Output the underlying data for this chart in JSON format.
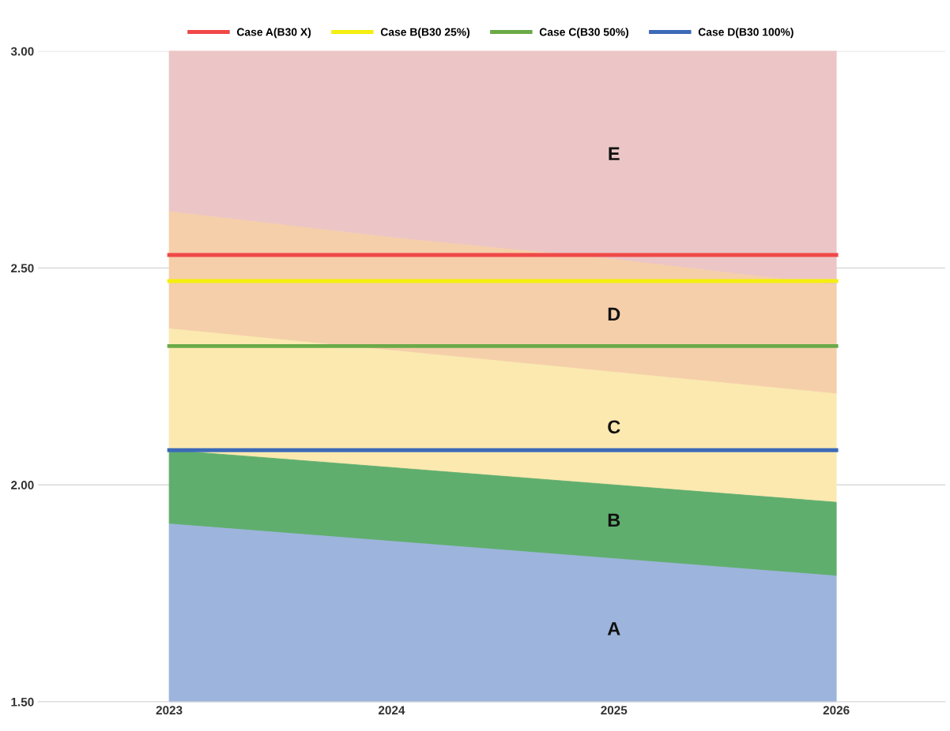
{
  "chart_data": {
    "type": "area",
    "categories": [
      "2023",
      "2024",
      "2025",
      "2026"
    ],
    "series": [
      {
        "name": "A",
        "color": "#9db4dc",
        "values": [
          1.91,
          1.87,
          1.83,
          1.79
        ]
      },
      {
        "name": "B",
        "color": "#5fae6e",
        "values": [
          2.08,
          2.04,
          2.0,
          1.96
        ]
      },
      {
        "name": "C",
        "color": "#fbe9b0",
        "values": [
          2.36,
          2.31,
          2.26,
          2.21
        ]
      },
      {
        "name": "D",
        "color": "#f5cfaa",
        "values": [
          2.63,
          2.57,
          2.52,
          2.46
        ]
      },
      {
        "name": "E",
        "color": "#ecc6c6",
        "values": [
          3.0,
          3.0,
          3.0,
          3.0
        ]
      },
      {
        "name": "Case A(B30 X)",
        "type": "line",
        "color": "#f04848",
        "values": [
          2.53,
          2.53,
          2.53,
          2.53
        ]
      },
      {
        "name": "Case B(B30 25%)",
        "type": "line",
        "color": "#f5ee10",
        "values": [
          2.47,
          2.47,
          2.47,
          2.47
        ]
      },
      {
        "name": "Case C(B30 50%)",
        "type": "line",
        "color": "#6aaa48",
        "values": [
          2.32,
          2.32,
          2.32,
          2.32
        ]
      },
      {
        "name": "Case D(B30 100%)",
        "type": "line",
        "color": "#3d6ab8",
        "values": [
          2.08,
          2.08,
          2.08,
          2.08
        ]
      }
    ],
    "ylim": [
      1.5,
      3.0
    ],
    "yticks": [
      {
        "value": 1.5,
        "label": "1.50"
      },
      {
        "value": 2.0,
        "label": "2.00"
      },
      {
        "value": 2.5,
        "label": "2.50"
      },
      {
        "value": 3.0,
        "label": "3.00"
      }
    ],
    "grid": "y",
    "legend": "top",
    "marker": "none",
    "line_style": "solid"
  }
}
